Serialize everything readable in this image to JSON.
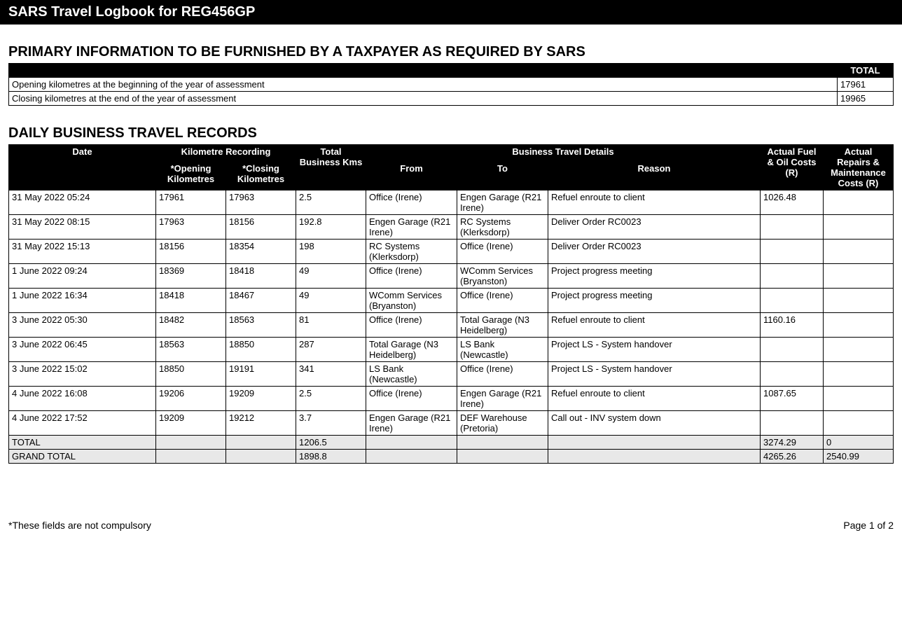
{
  "header": {
    "title": "SARS Travel Logbook for REG456GP"
  },
  "primary": {
    "heading": "PRIMARY INFORMATION TO BE FURNISHED BY A TAXPAYER AS REQUIRED BY SARS",
    "total_header": "TOTAL",
    "rows": [
      {
        "label": "Opening kilometres at the beginning of the year of assessment",
        "value": "17961"
      },
      {
        "label": "Closing kilometres at the end of the year of assessment",
        "value": "19965"
      }
    ]
  },
  "travel": {
    "heading": "DAILY BUSINESS TRAVEL RECORDS",
    "columns": {
      "date": "Date",
      "km_recording": "Kilometre Recording",
      "opening_km": "*Opening Kilometres",
      "closing_km": "*Closing Kilometres",
      "total_business_kms": "Total Business Kms",
      "business_details": "Business Travel Details",
      "from": "From",
      "to": "To",
      "reason": "Reason",
      "fuel_oil": "Actual Fuel & Oil Costs (R)",
      "repairs": "Actual Repairs & Maintenance Costs (R)"
    },
    "rows": [
      {
        "date": "31 May 2022 05:24",
        "open": "17961",
        "close": "17963",
        "total": "2.5",
        "from": "Office (Irene)",
        "to": "Engen Garage (R21 Irene)",
        "reason": "Refuel enroute to client",
        "fuel": "1026.48",
        "repair": ""
      },
      {
        "date": "31 May 2022 08:15",
        "open": "17963",
        "close": "18156",
        "total": "192.8",
        "from": "Engen Garage (R21 Irene)",
        "to": "RC Systems (Klerksdorp)",
        "reason": "Deliver Order RC0023",
        "fuel": "",
        "repair": ""
      },
      {
        "date": "31 May 2022 15:13",
        "open": "18156",
        "close": "18354",
        "total": "198",
        "from": "RC Systems (Klerksdorp)",
        "to": "Office (Irene)",
        "reason": "Deliver Order RC0023",
        "fuel": "",
        "repair": ""
      },
      {
        "date": "1 June 2022 09:24",
        "open": "18369",
        "close": "18418",
        "total": "49",
        "from": "Office (Irene)",
        "to": "WComm Services (Bryanston)",
        "reason": "Project progress meeting",
        "fuel": "",
        "repair": ""
      },
      {
        "date": "1 June 2022 16:34",
        "open": "18418",
        "close": "18467",
        "total": "49",
        "from": "WComm Services (Bryanston)",
        "to": "Office (Irene)",
        "reason": "Project progress meeting",
        "fuel": "",
        "repair": ""
      },
      {
        "date": "3 June 2022 05:30",
        "open": "18482",
        "close": "18563",
        "total": "81",
        "from": "Office (Irene)",
        "to": "Total Garage (N3 Heidelberg)",
        "reason": "Refuel enroute to client",
        "fuel": "1160.16",
        "repair": ""
      },
      {
        "date": "3 June 2022 06:45",
        "open": "18563",
        "close": "18850",
        "total": "287",
        "from": "Total Garage (N3 Heidelberg)",
        "to": "LS Bank (Newcastle)",
        "reason": "Project LS - System handover",
        "fuel": "",
        "repair": ""
      },
      {
        "date": "3 June 2022 15:02",
        "open": "18850",
        "close": "19191",
        "total": "341",
        "from": "LS Bank (Newcastle)",
        "to": "Office (Irene)",
        "reason": "Project LS - System handover",
        "fuel": "",
        "repair": ""
      },
      {
        "date": "4 June 2022 16:08",
        "open": "19206",
        "close": "19209",
        "total": "2.5",
        "from": "Office (Irene)",
        "to": "Engen Garage (R21 Irene)",
        "reason": "Refuel enroute to client",
        "fuel": "1087.65",
        "repair": ""
      },
      {
        "date": "4 June 2022 17:52",
        "open": "19209",
        "close": "19212",
        "total": "3.7",
        "from": "Engen Garage (R21 Irene)",
        "to": "DEF Warehouse (Pretoria)",
        "reason": "Call out - INV system down",
        "fuel": "",
        "repair": ""
      }
    ],
    "total_row": {
      "label": "TOTAL",
      "total": "1206.5",
      "fuel": "3274.29",
      "repair": "0"
    },
    "grand_total_row": {
      "label": "GRAND TOTAL",
      "total": "1898.8",
      "fuel": "4265.26",
      "repair": "2540.99"
    }
  },
  "footer": {
    "note": "*These fields are not compulsory",
    "page": "Page 1 of 2"
  }
}
